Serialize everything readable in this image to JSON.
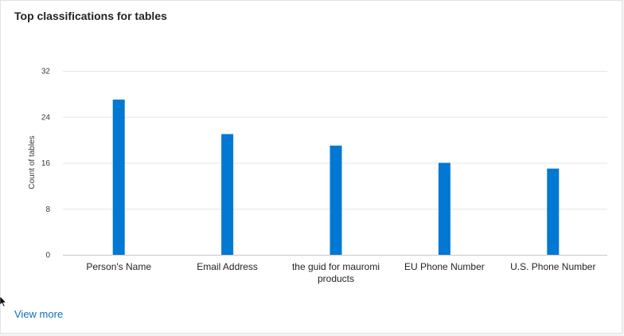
{
  "card": {
    "title": "Top classifications for tables",
    "view_more_label": "View more"
  },
  "colors": {
    "bar": "#0078d4",
    "gridline": "#e6e6e6",
    "link": "#0f6cbd"
  },
  "chart_data": {
    "type": "bar",
    "title": "Top classifications for tables",
    "xlabel": "",
    "ylabel": "Count of tables",
    "ylim": [
      0,
      32
    ],
    "yticks": [
      0,
      8,
      16,
      24,
      32
    ],
    "grid": true,
    "categories": [
      "Person's Name",
      "Email Address",
      "the guid for mauromi products",
      "EU Phone Number",
      "U.S. Phone Number"
    ],
    "category_lines": [
      [
        "Person's Name"
      ],
      [
        "Email Address"
      ],
      [
        "the guid for mauromi",
        "products"
      ],
      [
        "EU Phone Number"
      ],
      [
        "U.S. Phone Number"
      ]
    ],
    "values": [
      27,
      21,
      19,
      16,
      15
    ]
  }
}
